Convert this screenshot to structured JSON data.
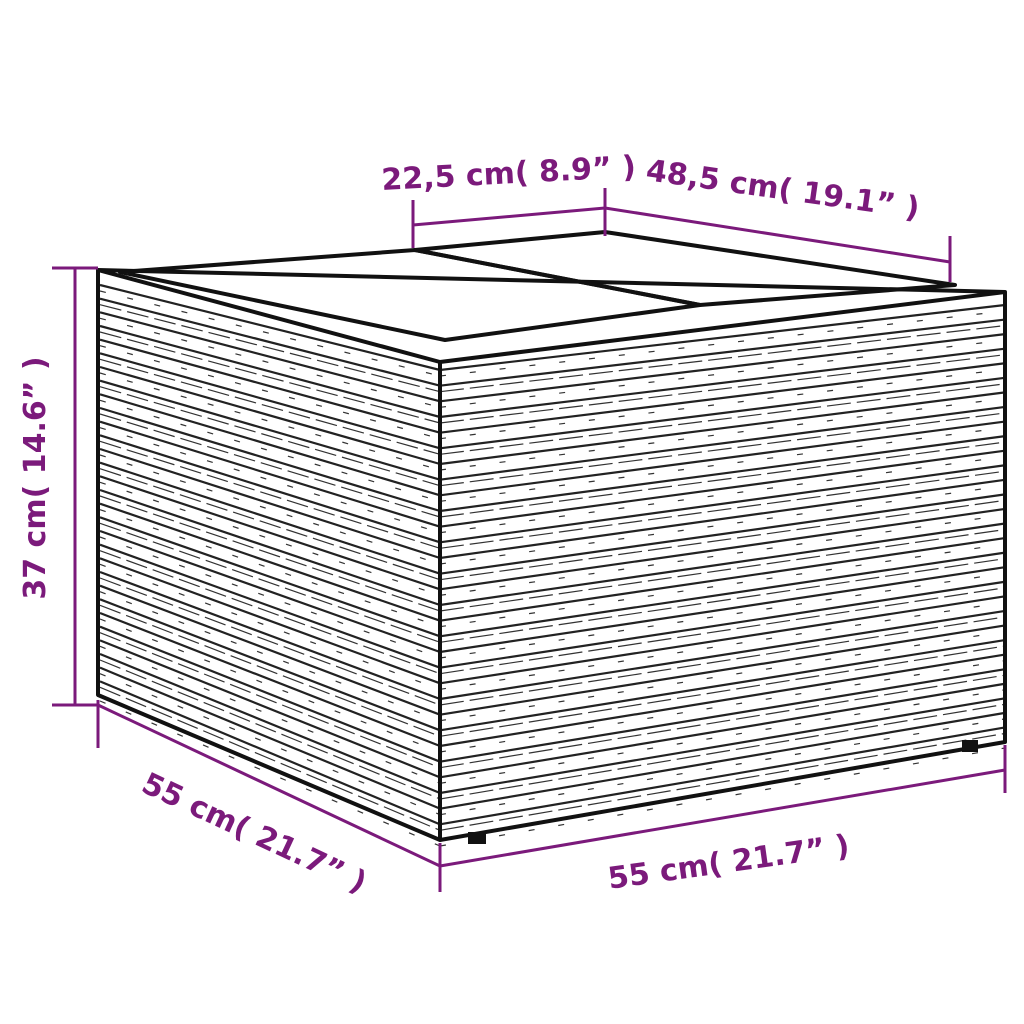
{
  "dimensions": {
    "top_left_width": "22,5 cm( 8.9” )",
    "top_depth": "48,5 cm( 19.1” )",
    "height": "37 cm( 14.6” )",
    "front_left": "55 cm( 21.7” )",
    "front_right": "55 cm( 21.7” )"
  },
  "colors": {
    "dimension": "#7b1a7b",
    "outline": "#111111"
  }
}
